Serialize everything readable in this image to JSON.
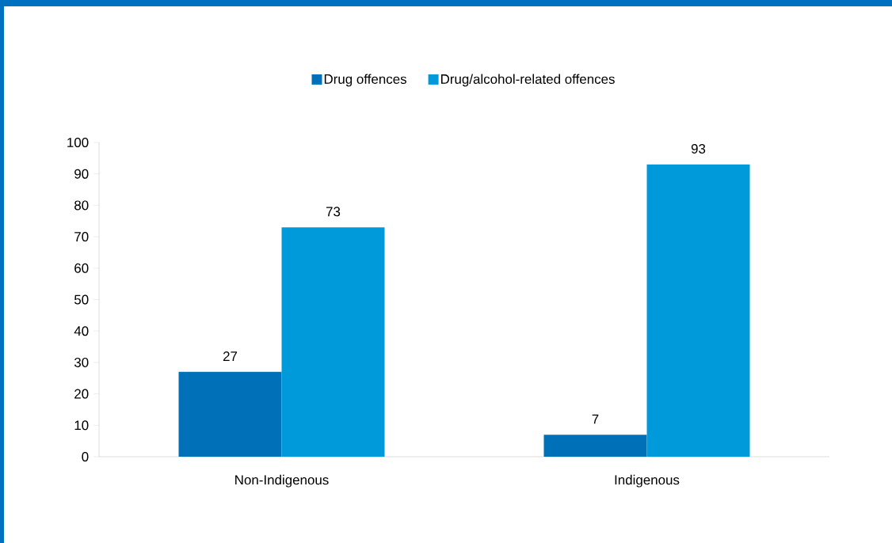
{
  "chart_data": {
    "type": "bar",
    "categories": [
      "Non-Indigenous",
      "Indigenous"
    ],
    "series": [
      {
        "name": "Drug offences",
        "color": "#0070b8",
        "values": [
          27,
          7
        ]
      },
      {
        "name": "Drug/alcohol-related offences",
        "color": "#0099d9",
        "values": [
          73,
          93
        ]
      }
    ],
    "ylim": [
      0,
      100
    ],
    "yticks": [
      0,
      10,
      20,
      30,
      40,
      50,
      60,
      70,
      80,
      90,
      100
    ],
    "data_labels": true,
    "legend": "top",
    "grid": false
  }
}
